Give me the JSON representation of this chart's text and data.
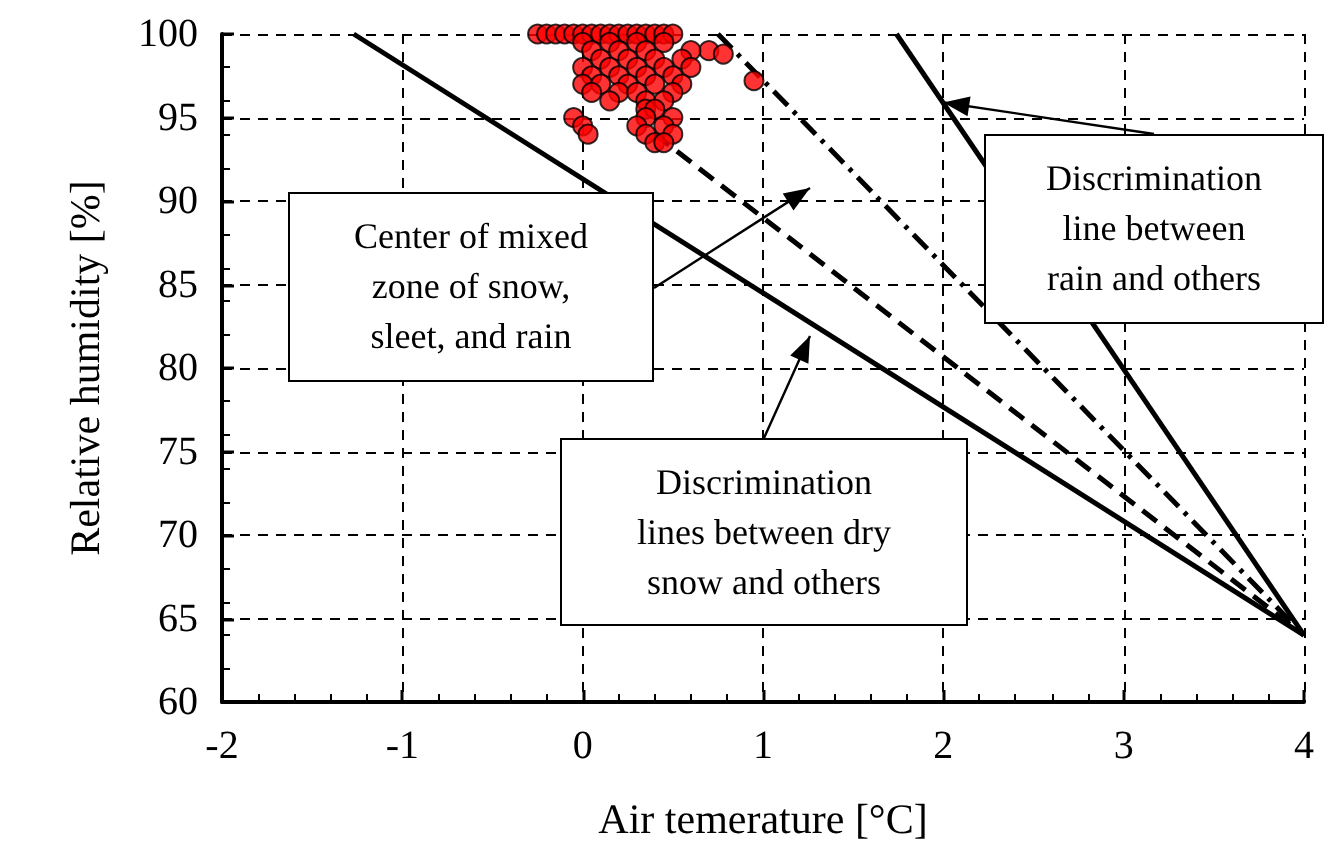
{
  "chart_data": {
    "type": "scatter",
    "xlabel": "Air temerature [°C]",
    "ylabel": "Relative humidity [%]",
    "xlim": [
      -2,
      4
    ],
    "xticks": [
      -2,
      -1,
      0,
      1,
      2,
      3,
      4
    ],
    "ylim": [
      60,
      100
    ],
    "yticks": [
      60,
      65,
      70,
      75,
      80,
      85,
      90,
      95,
      100
    ],
    "grid": true,
    "series": [
      {
        "color": "#ff0000",
        "marker": "circle",
        "x": [
          -0.25,
          -0.2,
          -0.15,
          -0.1,
          -0.05,
          0,
          0.05,
          0.1,
          0.15,
          0.2,
          0.25,
          0.3,
          0.35,
          0.4,
          0.45,
          0.5,
          0,
          0.15,
          0.3,
          0.45,
          0.7,
          0.78,
          0.05,
          0.2,
          0.35,
          0.6,
          0.1,
          0.25,
          0.4,
          0.55,
          0,
          0.15,
          0.3,
          0.45,
          0.6,
          0.05,
          0.2,
          0.35,
          0.5,
          0,
          0.1,
          0.25,
          0.4,
          0.55,
          0.95,
          0.05,
          0.2,
          0.3,
          0.5,
          0.15,
          0.35,
          0.45,
          0.35,
          0.4,
          -0.05,
          0.35,
          0.5,
          0,
          0.3,
          0.45,
          0.03,
          0.35,
          0.5,
          0.4,
          0.45
        ],
        "values": [
          100,
          100,
          100,
          100,
          100,
          100,
          100,
          100,
          100,
          100,
          100,
          100,
          100,
          100,
          100,
          100,
          99.5,
          99.5,
          99.5,
          99.5,
          99,
          98.8,
          99,
          99,
          99,
          99,
          98.5,
          98.5,
          98.5,
          98.5,
          98,
          98,
          98,
          98,
          98,
          97.5,
          97.5,
          97.5,
          97.5,
          97,
          97,
          97,
          97,
          97,
          97.2,
          96.5,
          96.5,
          96.5,
          96.5,
          96,
          96,
          96,
          95.5,
          95.5,
          95,
          95,
          95,
          94.5,
          94.5,
          94.5,
          94,
          94,
          94,
          93.5,
          93.5
        ]
      },
      {
        "type": "line",
        "color": "#000000",
        "line_style": "solid",
        "marker": "none",
        "x": [
          -1.27,
          4
        ],
        "values": [
          100,
          64
        ]
      },
      {
        "type": "line",
        "color": "#000000",
        "line_style": "dashed",
        "marker": "none",
        "x": [
          0.4,
          4
        ],
        "values": [
          94,
          64
        ]
      },
      {
        "type": "line",
        "color": "#000000",
        "line_style": "dotted",
        "marker": "none",
        "x": [
          0.75,
          4
        ],
        "values": [
          100,
          64
        ]
      },
      {
        "type": "line",
        "color": "#000000",
        "line_style": "solid",
        "marker": "none",
        "x": [
          1.74,
          4
        ],
        "values": [
          100,
          64
        ]
      }
    ],
    "annotations": [
      "Center of mixed\nzone of snow,\nsleet, and rain",
      {
        "text": "Discrimination\nline between\nrain and others",
        "x": 2,
        "y": 95.9
      },
      "Discrimination\nlines between dry\nsnow and others"
    ]
  }
}
